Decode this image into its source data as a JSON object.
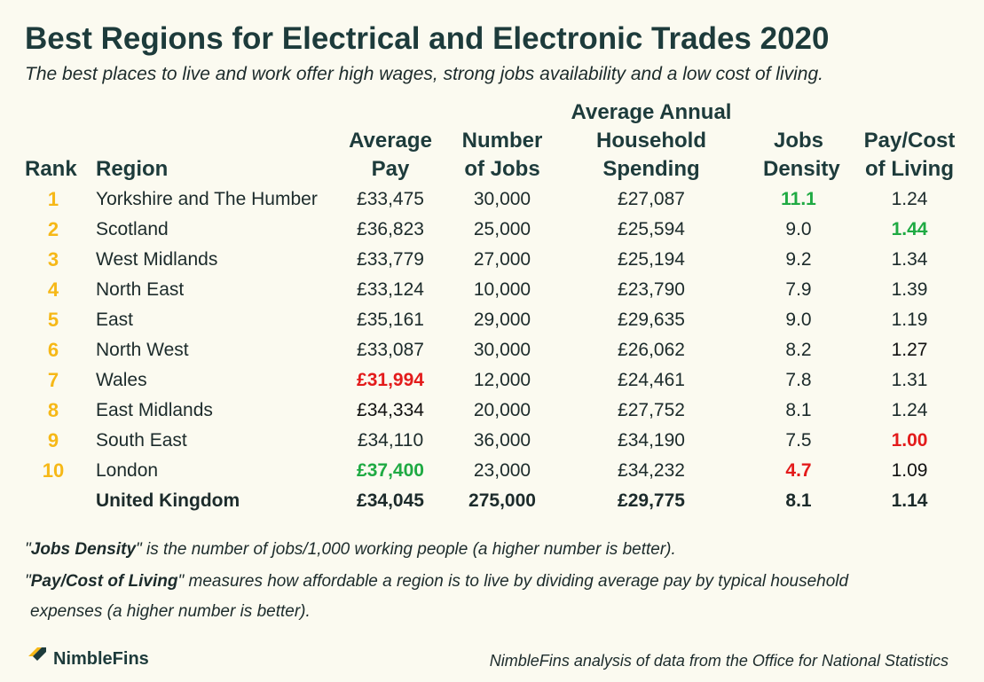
{
  "chart_data": {
    "type": "table",
    "title": "Best Regions for Electrical and Electronic Trades 2020",
    "subtitle": "The best places to live and work offer high wages, strong jobs availability and a low cost of living.",
    "columns": [
      {
        "key": "rank",
        "label": "Rank"
      },
      {
        "key": "region",
        "label": "Region"
      },
      {
        "key": "pay",
        "label": "Average Pay",
        "lines": [
          "Average",
          "Pay"
        ]
      },
      {
        "key": "jobs",
        "label": "Number of Jobs",
        "lines": [
          "Number",
          "of Jobs"
        ]
      },
      {
        "key": "spend",
        "label": "Average Annual Household Spending",
        "lines": [
          "Average Annual",
          "Household",
          "Spending"
        ]
      },
      {
        "key": "density",
        "label": "Jobs Density",
        "lines": [
          "Jobs",
          "Density"
        ]
      },
      {
        "key": "ratio",
        "label": "Pay/Cost of Living",
        "lines": [
          "Pay/Cost",
          "of Living"
        ]
      }
    ],
    "rows": [
      {
        "rank": "1",
        "region": "Yorkshire and The Humber",
        "pay": "£33,475",
        "jobs": "30,000",
        "spend": "£27,087",
        "density": "11.1",
        "ratio": "1.24"
      },
      {
        "rank": "2",
        "region": "Scotland",
        "pay": "£36,823",
        "jobs": "25,000",
        "spend": "£25,594",
        "density": "9.0",
        "ratio": "1.44"
      },
      {
        "rank": "3",
        "region": "West Midlands",
        "pay": "£33,779",
        "jobs": "27,000",
        "spend": "£25,194",
        "density": "9.2",
        "ratio": "1.34"
      },
      {
        "rank": "4",
        "region": "North East",
        "pay": "£33,124",
        "jobs": "10,000",
        "spend": "£23,790",
        "density": "7.9",
        "ratio": "1.39"
      },
      {
        "rank": "5",
        "region": "East",
        "pay": "£35,161",
        "jobs": "29,000",
        "spend": "£29,635",
        "density": "9.0",
        "ratio": "1.19"
      },
      {
        "rank": "6",
        "region": "North West",
        "pay": "£33,087",
        "jobs": "30,000",
        "spend": "£26,062",
        "density": "8.2",
        "ratio": "1.27"
      },
      {
        "rank": "7",
        "region": "Wales",
        "pay": "£31,994",
        "jobs": "12,000",
        "spend": "£24,461",
        "density": "7.8",
        "ratio": "1.31"
      },
      {
        "rank": "8",
        "region": "East Midlands",
        "pay": "£34,334",
        "jobs": "20,000",
        "spend": "£27,752",
        "density": "8.1",
        "ratio": "1.24"
      },
      {
        "rank": "9",
        "region": "South East",
        "pay": "£34,110",
        "jobs": "36,000",
        "spend": "£34,190",
        "density": "7.5",
        "ratio": "1.00"
      },
      {
        "rank": "10",
        "region": "London",
        "pay": "£37,400",
        "jobs": "23,000",
        "spend": "£34,232",
        "density": "4.7",
        "ratio": "1.09"
      }
    ],
    "total": {
      "rank": "",
      "region": "United Kingdom",
      "pay": "£34,045",
      "jobs": "275,000",
      "spend": "£29,775",
      "density": "8.1",
      "ratio": "1.14"
    },
    "highlights": [
      {
        "row": 0,
        "col": "density",
        "color": "green"
      },
      {
        "row": 1,
        "col": "ratio",
        "color": "green"
      },
      {
        "row": 6,
        "col": "pay",
        "color": "red"
      },
      {
        "row": 9,
        "col": "pay",
        "color": "green"
      },
      {
        "row": 9,
        "col": "density",
        "color": "red"
      },
      {
        "row": 8,
        "col": "ratio",
        "color": "red"
      },
      {
        "row": 7,
        "col": "pay",
        "color": "black"
      },
      {
        "row": 5,
        "col": "ratio",
        "color": "black"
      },
      {
        "row": 9,
        "col": "ratio",
        "color": "black"
      }
    ],
    "colors": {
      "green": "#1faa43",
      "red": "#e31b1b",
      "black": "#111111",
      "rank": "#f6b817",
      "header": "#1d3b3b"
    }
  },
  "notes": {
    "density_term": "Jobs Density",
    "density_text": " is the number of jobs/1,000 working people (a higher number is better).",
    "ratio_term": "Pay/Cost of Living",
    "ratio_text": " measures how affordable a region is to live by dividing average pay by typical household",
    "ratio_text_2": "expenses (a higher number is better)."
  },
  "footer": {
    "brand": "NimbleFins",
    "source": "NimbleFins analysis of data from the Office for National Statistics"
  }
}
